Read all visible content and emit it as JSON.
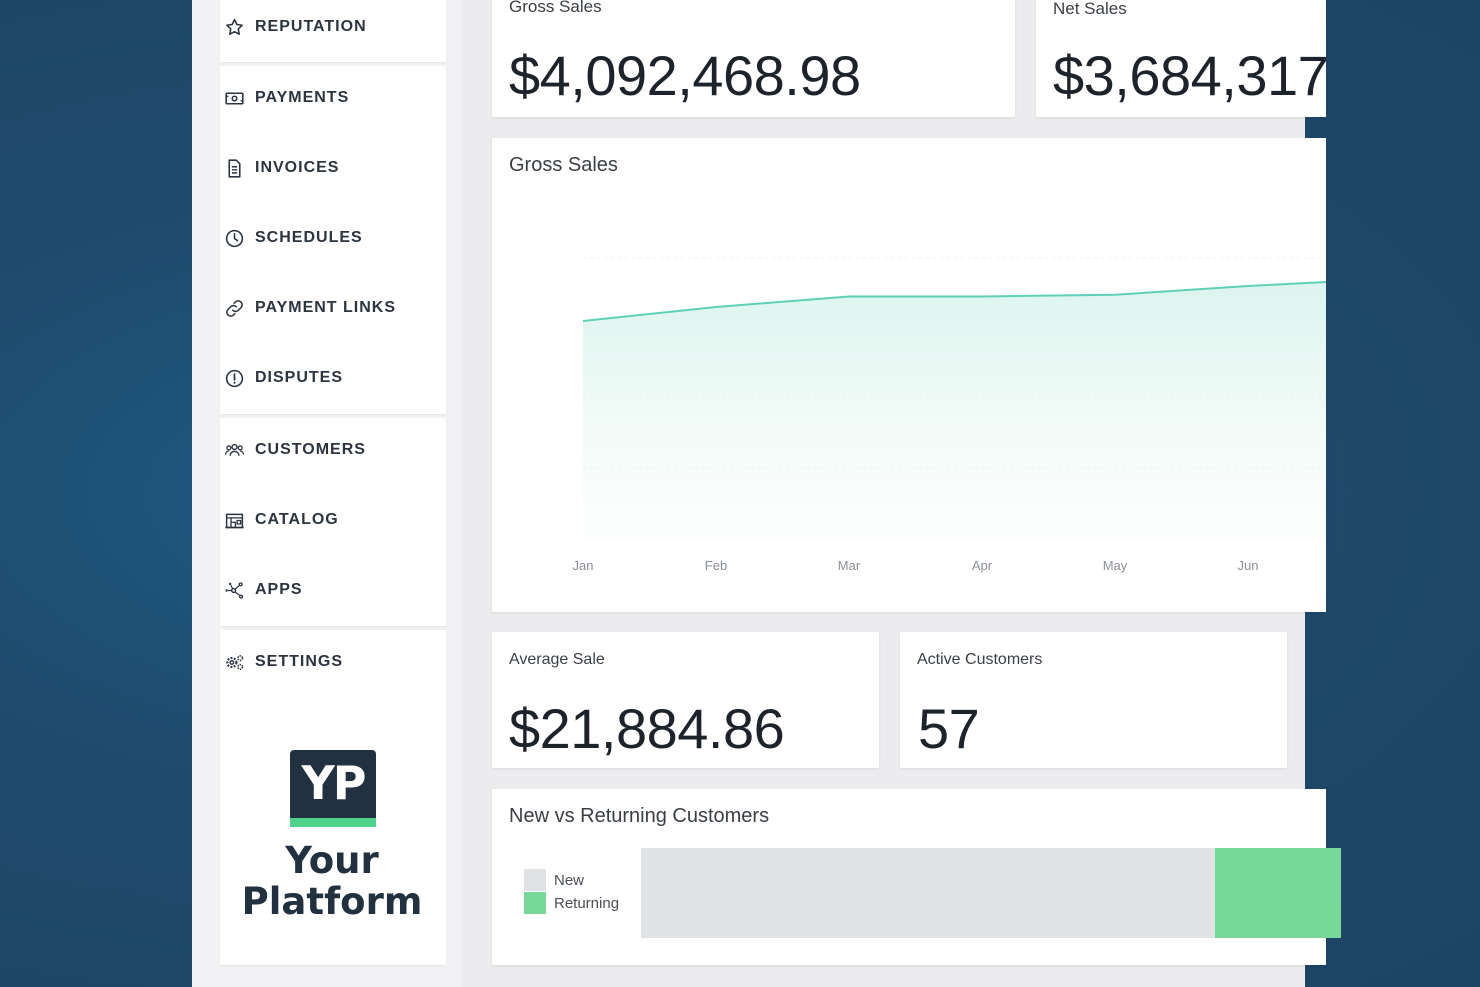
{
  "sidebar": {
    "items": [
      {
        "label": "REPUTATION",
        "icon": "star-icon"
      },
      {
        "label": "PAYMENTS",
        "icon": "cash-icon"
      },
      {
        "label": "INVOICES",
        "icon": "document-icon"
      },
      {
        "label": "SCHEDULES",
        "icon": "clock-icon"
      },
      {
        "label": "PAYMENT LINKS",
        "icon": "link-icon"
      },
      {
        "label": "DISPUTES",
        "icon": "alert-circle-icon"
      },
      {
        "label": "CUSTOMERS",
        "icon": "people-icon"
      },
      {
        "label": "CATALOG",
        "icon": "store-icon"
      },
      {
        "label": "APPS",
        "icon": "apps-network-icon"
      },
      {
        "label": "SETTINGS",
        "icon": "gears-icon"
      }
    ]
  },
  "brand": {
    "logo_text": "YP",
    "name_line1": "Your",
    "name_line2": "Platform",
    "logo_color": "#22313f",
    "accent_color": "#4fd18b"
  },
  "metrics": {
    "gross_sales": {
      "label": "Gross Sales",
      "value": "$4,092,468.98"
    },
    "net_sales": {
      "label": "Net Sales",
      "value": "$3,684,317"
    },
    "average_sale": {
      "label": "Average Sale",
      "value": "$21,884.86"
    },
    "active_customers": {
      "label": "Active Customers",
      "value": "57"
    }
  },
  "gross_sales_chart": {
    "title": "Gross Sales",
    "line_color": "#5fd0b6"
  },
  "customers_chart": {
    "title": "New vs Returning Customers",
    "legend": [
      {
        "label": "New",
        "color": "#e1e2e6"
      },
      {
        "label": "Returning",
        "color": "#78d89a"
      }
    ]
  },
  "chart_data": [
    {
      "type": "area",
      "title": "Gross Sales",
      "x": [
        "Jan",
        "Feb",
        "Mar",
        "Apr",
        "May",
        "Jun"
      ],
      "series": [
        {
          "values": [
            620000,
            660000,
            690000,
            690000,
            695000,
            720000
          ]
        }
      ],
      "ylim": [
        0,
        1000000
      ],
      "grid": true
    },
    {
      "type": "bar",
      "title": "New vs Returning Customers",
      "orientation": "horizontal-stacked",
      "series": [
        {
          "name": "New",
          "values": [
            82
          ]
        },
        {
          "name": "Returning",
          "values": [
            18
          ]
        }
      ]
    }
  ]
}
